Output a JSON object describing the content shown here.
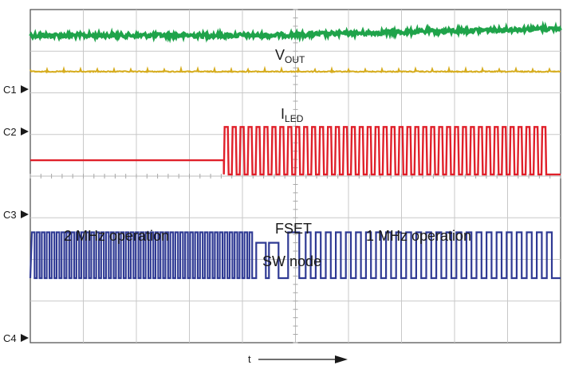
{
  "chart_data": {
    "type": "line",
    "title": "",
    "xlabel": "t",
    "ylabel": "",
    "grid": true,
    "legend": "none",
    "grid_divisions": {
      "x": 10,
      "y": 8
    },
    "channel_markers": [
      "C1",
      "C2",
      "C3",
      "C4"
    ],
    "series": [
      {
        "name": "VOUT",
        "label_main": "V",
        "label_sub": "OUT",
        "color": "#1fa34a",
        "shape": "noisy-dc",
        "level_div_from_top": [
          0.62,
          0.45
        ],
        "ripple_div": 0.05
      },
      {
        "name": "ILED",
        "label_main": "I",
        "label_sub": "LED",
        "color": "#d6ac1d",
        "shape": "dc-with-small-spikes",
        "level_div_from_top": 1.49
      },
      {
        "name": "FSET",
        "color": "#e0202a",
        "shape": "low-then-square-wave",
        "low_div_from_top": 3.62,
        "transition_x_div": 3.65,
        "high_div_from_top": 2.82,
        "square_low_div_from_top": 3.96,
        "cycles_after_transition": 41
      },
      {
        "name": "SW node",
        "color": "#2f3a94",
        "shape": "switching-square-wave",
        "high_div_from_top": 5.35,
        "low_div_from_top": 6.45,
        "frequency_before": "2 MHz",
        "frequency_after": "1 MHz",
        "transition_x_div": 4.2
      }
    ],
    "annotations": [
      {
        "text": "2 MHz operation",
        "side": "left"
      },
      {
        "text": "1 MHz operation",
        "side": "right"
      }
    ],
    "time_axis_label": "t",
    "time_axis_arrow": "right"
  }
}
